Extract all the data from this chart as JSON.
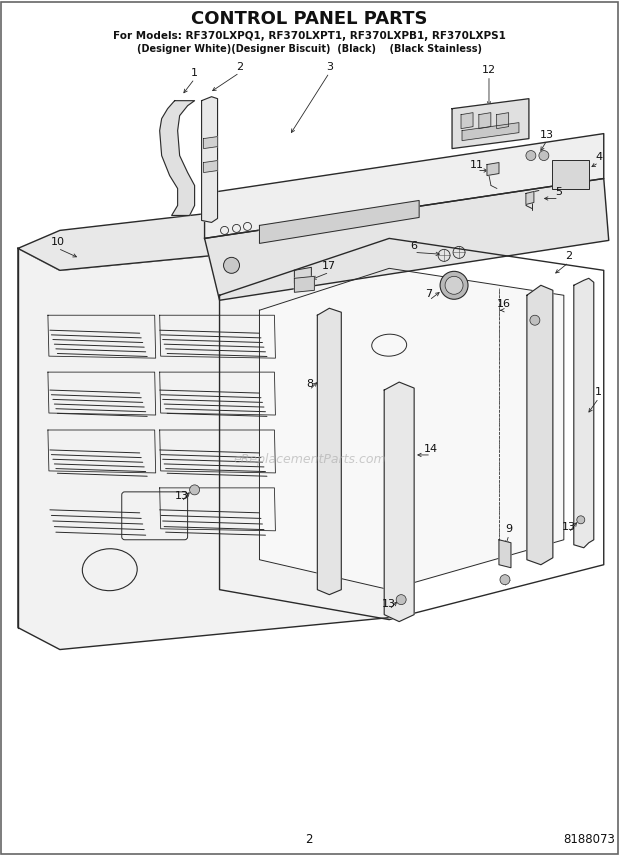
{
  "title": "CONTROL PANEL PARTS",
  "subtitle_line1": "For Models: RF370LXPQ1, RF370LXPT1, RF370LXPB1, RF370LXPS1",
  "subtitle_line2": "(Designer White)(Designer Biscuit)  (Black)    (Black Stainless)",
  "watermark": "eReplacementParts.com",
  "page_number": "2",
  "part_number": "8188073",
  "bg_color": "#ffffff",
  "lc": "#2a2a2a",
  "title_fs": 13,
  "sub1_fs": 7.5,
  "sub2_fs": 7.0,
  "label_fs": 8.0,
  "footer_fs": 8.5
}
